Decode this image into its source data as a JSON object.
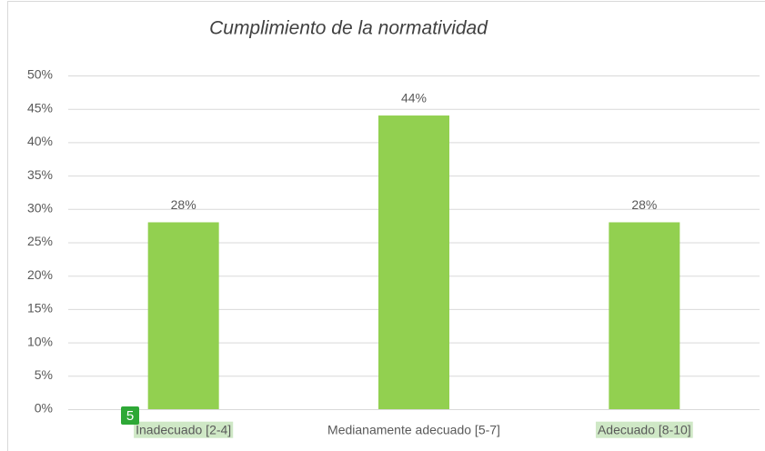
{
  "chart_data": {
    "type": "bar",
    "title": "Cumplimiento de la normatividad",
    "categories": [
      "Inadecuado [2-4]",
      "Medianamente adecuado [5-7]",
      "Adecuado [8-10]"
    ],
    "values": [
      28,
      44,
      28
    ],
    "value_labels": [
      "28%",
      "44%",
      "28%"
    ],
    "color": "#92d050",
    "ylim": [
      0,
      50
    ],
    "yticks": [
      {
        "value": 0,
        "label": "0%"
      },
      {
        "value": 5,
        "label": "5%"
      },
      {
        "value": 10,
        "label": "10%"
      },
      {
        "value": 15,
        "label": "15%"
      },
      {
        "value": 20,
        "label": "20%"
      },
      {
        "value": 25,
        "label": "25%"
      },
      {
        "value": 30,
        "label": "30%"
      },
      {
        "value": 35,
        "label": "35%"
      },
      {
        "value": 40,
        "label": "40%"
      },
      {
        "value": 45,
        "label": "45%"
      },
      {
        "value": 50,
        "label": "50%"
      }
    ],
    "grid": true,
    "highlighted_categories": [
      true,
      false,
      true
    ],
    "badge": "5"
  }
}
